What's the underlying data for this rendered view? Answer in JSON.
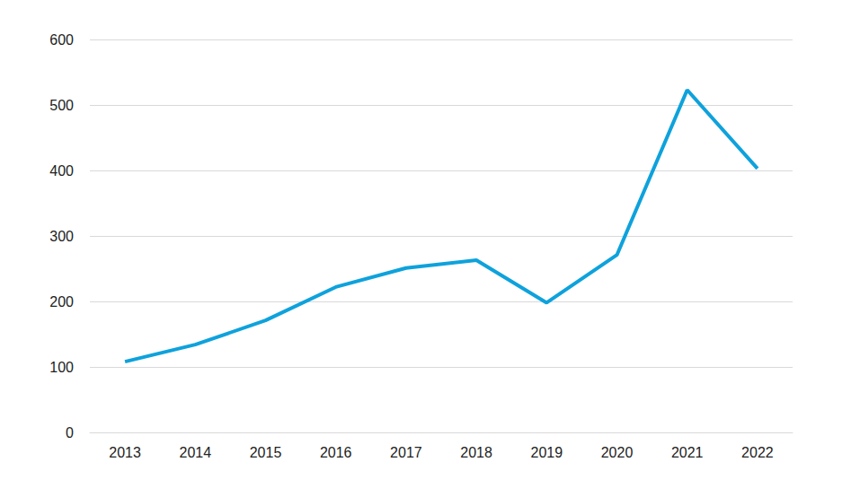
{
  "chart_data": {
    "type": "line",
    "categories": [
      "2013",
      "2014",
      "2015",
      "2016",
      "2017",
      "2018",
      "2019",
      "2020",
      "2021",
      "2022"
    ],
    "values": [
      108,
      134,
      171,
      222,
      251,
      263,
      198,
      271,
      523,
      403
    ],
    "color": "#0ea2dc",
    "marker": "none",
    "ylim": [
      0,
      600
    ],
    "yticks": [
      0,
      100,
      200,
      300,
      400,
      500,
      600
    ],
    "grid": true
  }
}
